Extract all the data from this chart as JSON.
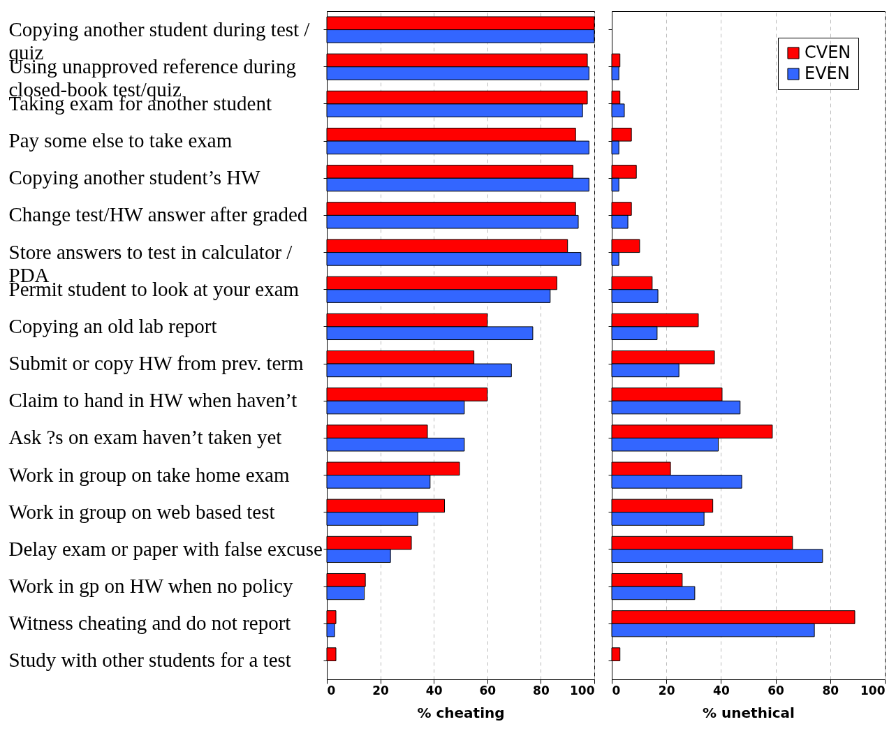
{
  "chart_data": [
    {
      "type": "bar",
      "orientation": "horizontal",
      "categories": [
        "Copying another student during test / quiz",
        "Using unapproved reference during closed-book test/quiz",
        "Taking exam for another student",
        "Pay some else to take exam",
        "Copying another student’s HW",
        "Change test/HW answer after graded",
        "Store answers to test in calculator / PDA",
        "Permit student to look at your exam",
        "Copying an old lab report",
        "Submit or copy HW from prev. term",
        "Claim to hand in HW when haven’t",
        "Ask ?s on exam haven’t taken yet",
        "Work in group on take home exam",
        "Work in group on web based test",
        "Delay exam or paper with false excuse",
        "Work in gp on HW when no policy",
        "Witness cheating and do not report",
        "Study with other students for a test"
      ],
      "series": [
        {
          "color": "#ff0000",
          "values": [
            100,
            97.4,
            97.4,
            93,
            92,
            93,
            90,
            86,
            60,
            55,
            60,
            37.6,
            49.6,
            44,
            31.6,
            14.4,
            3.4,
            3.4
          ]
        },
        {
          "color": "#3366ff",
          "values": [
            100,
            98,
            95.6,
            98,
            98,
            94,
            95,
            83.5,
            77,
            69,
            51.4,
            51.4,
            38.6,
            34,
            23.8,
            14,
            2.9,
            null
          ]
        }
      ],
      "xlabel": "% cheating",
      "xlim": [
        0,
        100
      ],
      "xticks": [
        0,
        20,
        40,
        60,
        80,
        100
      ],
      "grid": "x",
      "legend": false
    },
    {
      "type": "bar",
      "orientation": "horizontal",
      "categories": [
        null,
        null,
        null,
        null,
        null,
        null,
        null,
        null,
        null,
        null,
        null,
        null,
        null,
        null,
        null,
        null,
        null,
        null
      ],
      "series": [
        {
          "name": "CVEN",
          "color": "#ff0000",
          "values": [
            null,
            3,
            3,
            7.2,
            9,
            7.2,
            10.2,
            14.8,
            31.7,
            37.6,
            40.4,
            58.8,
            21.5,
            37,
            66.2,
            25.8,
            89,
            3
          ]
        },
        {
          "name": "EVEN",
          "color": "#3366ff",
          "values": [
            null,
            2.6,
            4.6,
            2.6,
            2.6,
            5.9,
            2.6,
            16.9,
            16.6,
            24.6,
            47,
            39,
            47.6,
            33.8,
            77.2,
            30.4,
            74.2,
            null
          ]
        }
      ],
      "xlabel": "% unethical",
      "xlim": [
        0,
        100
      ],
      "xticks": [
        0,
        20,
        40,
        60,
        80,
        100
      ],
      "grid": "x",
      "legend": "top right",
      "tick_labels": "x"
    }
  ]
}
